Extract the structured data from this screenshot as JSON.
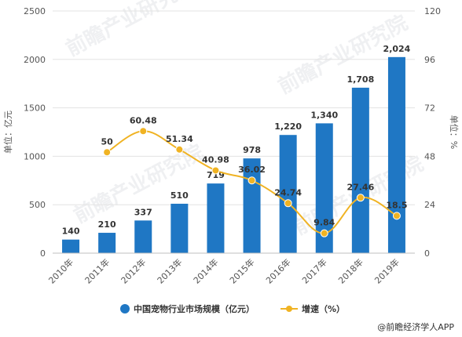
{
  "chart_data": {
    "type": "bar",
    "categories": [
      "2010年",
      "2011年",
      "2012年",
      "2013年",
      "2014年",
      "2015年",
      "2016年",
      "2017年",
      "2018年",
      "2019年"
    ],
    "series": [
      {
        "name": "中国宠物行业市场规模（亿元）",
        "type": "bar",
        "values": [
          140,
          210,
          337,
          510,
          719,
          978,
          1220,
          1340,
          1708,
          2024
        ],
        "labels": [
          "140",
          "210",
          "337",
          "510",
          "719",
          "978",
          "1,220",
          "1,340",
          "1,708",
          "2,024"
        ],
        "color": "#1f77c4"
      },
      {
        "name": "增速（%）",
        "type": "line",
        "axis": "right",
        "values": [
          null,
          50,
          60.48,
          51.34,
          40.98,
          36.02,
          24.74,
          9.84,
          27.46,
          18.5
        ],
        "labels": [
          "",
          "50",
          "60.48",
          "51.34",
          "40.98",
          "36.02",
          "24.74",
          "9.84",
          "27.46",
          "18.5"
        ],
        "color": "#f0b323"
      }
    ],
    "ylabel": "单位：亿元",
    "ylabel_right": "单位：%",
    "ylim": [
      0,
      2500
    ],
    "yticks": [
      "0",
      "500",
      "1000",
      "1500",
      "2000",
      "2500"
    ],
    "ylim_right": [
      0,
      120
    ],
    "yticks_right": [
      "0",
      "24",
      "48",
      "72",
      "96",
      "120"
    ],
    "grid": true,
    "legend": "bottom"
  },
  "watermark": "前瞻产业研究院",
  "credit": "@前瞻经济学人APP"
}
